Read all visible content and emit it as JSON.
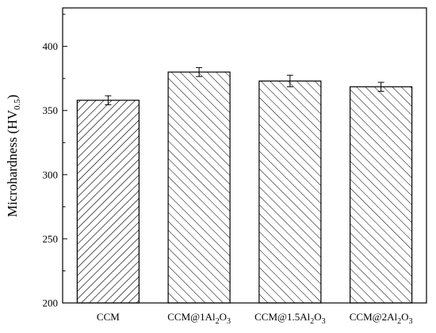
{
  "chart_data": {
    "type": "bar",
    "title": "",
    "xlabel": "",
    "ylabel": "Microhardness (HV",
    "ylabel_sub": "0.5",
    "ylabel_close": ")",
    "categories": [
      {
        "base": "CCM",
        "parts": []
      },
      {
        "base": "CCM@1Al",
        "parts": [
          {
            "t": "2",
            "s": true
          },
          {
            "t": "O",
            "s": false
          },
          {
            "t": "3",
            "s": true
          }
        ]
      },
      {
        "base": "CCM@1.5Al",
        "parts": [
          {
            "t": "2",
            "s": true
          },
          {
            "t": "O",
            "s": false
          },
          {
            "t": "3",
            "s": true
          }
        ]
      },
      {
        "base": "CCM@2Al",
        "parts": [
          {
            "t": "2",
            "s": true
          },
          {
            "t": "O",
            "s": false
          },
          {
            "t": "3",
            "s": true
          }
        ]
      }
    ],
    "values": [
      358,
      380,
      373,
      368.5
    ],
    "errors": [
      3.5,
      3.5,
      4.5,
      3.5
    ],
    "hatch": [
      "forward",
      "back",
      "back",
      "back"
    ],
    "ylim": [
      200,
      430
    ],
    "yticks": [
      200,
      250,
      300,
      350,
      400
    ],
    "grid": false,
    "legend": "none"
  }
}
